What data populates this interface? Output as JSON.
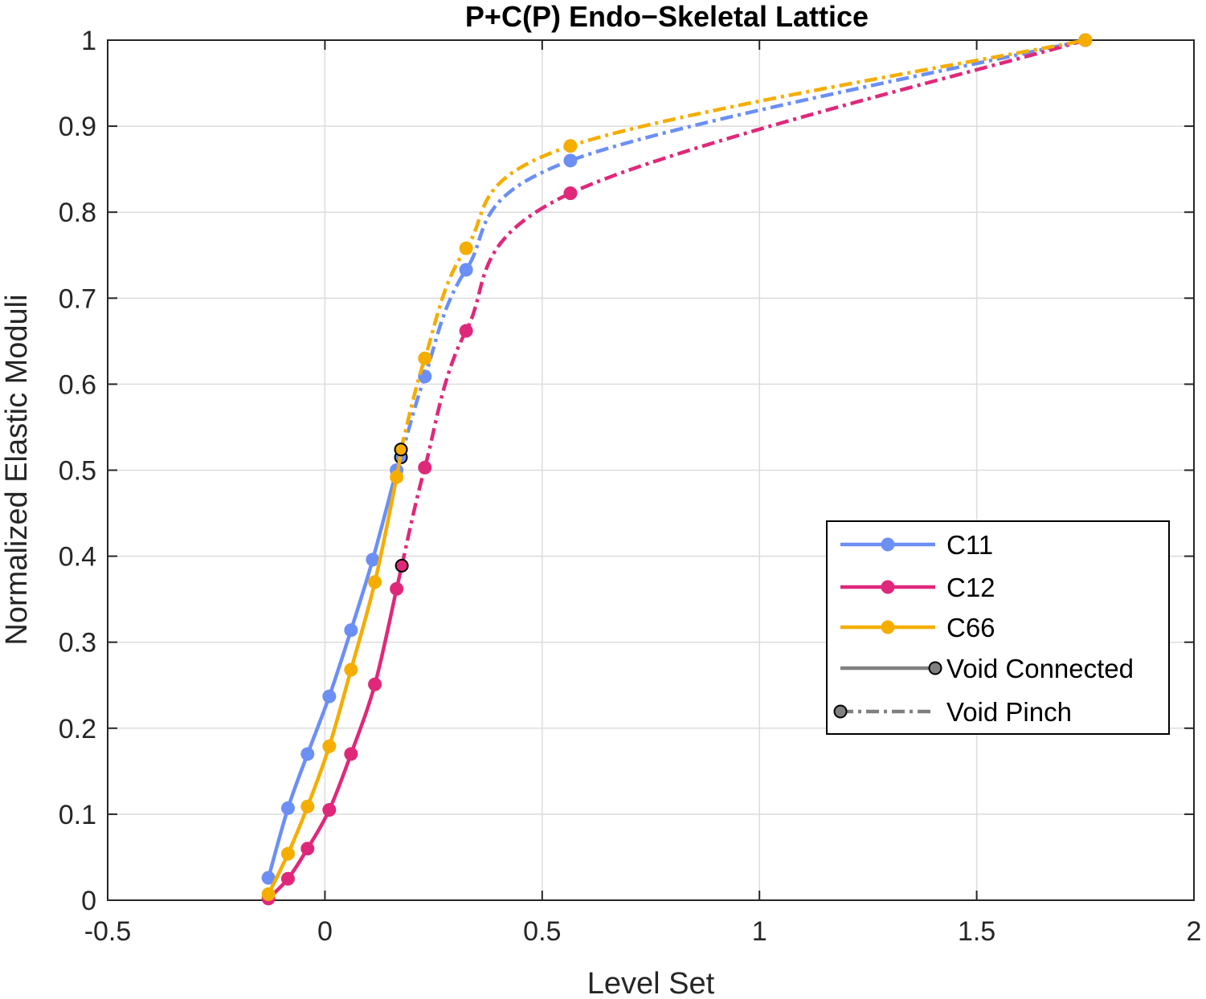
{
  "chart_data": {
    "type": "line",
    "title": "P+C(P) Endo−Skeletal Lattice",
    "xlabel": "Level Set",
    "ylabel": "Normalized Elastic Moduli",
    "xlim": [
      -0.5,
      2
    ],
    "ylim": [
      0,
      1
    ],
    "xticks": [
      -0.5,
      0,
      0.5,
      1,
      1.5,
      2
    ],
    "xtick_labels": [
      "-0.5",
      "0",
      "0.5",
      "1",
      "1.5",
      "2"
    ],
    "yticks": [
      0,
      0.1,
      0.2,
      0.3,
      0.4,
      0.5,
      0.6,
      0.7,
      0.8,
      0.9,
      1
    ],
    "ytick_labels": [
      "0",
      "0.1",
      "0.2",
      "0.3",
      "0.4",
      "0.5",
      "0.6",
      "0.7",
      "0.8",
      "0.9",
      "1"
    ],
    "grid": true,
    "legend_position": "lower-right",
    "series": [
      {
        "name": "C11",
        "color": "#6b8ff5",
        "connected": {
          "x": [
            -0.13,
            -0.085,
            -0.04,
            0.01,
            0.06,
            0.11,
            0.165
          ],
          "y": [
            0.026,
            0.107,
            0.17,
            0.237,
            0.314,
            0.396,
            0.5
          ]
        },
        "transition": {
          "x": 0.175,
          "y": 0.515
        },
        "pinch": {
          "x": [
            0.23,
            0.325,
            0.565,
            1.75
          ],
          "y": [
            0.609,
            0.733,
            0.86,
            1.0
          ]
        }
      },
      {
        "name": "C12",
        "color": "#e0287a",
        "connected": {
          "x": [
            -0.13,
            -0.085,
            -0.04,
            0.01,
            0.06,
            0.115,
            0.165
          ],
          "y": [
            0.002,
            0.025,
            0.06,
            0.105,
            0.17,
            0.251,
            0.362
          ]
        },
        "transition": {
          "x": 0.177,
          "y": 0.389
        },
        "pinch": {
          "x": [
            0.23,
            0.325,
            0.565,
            1.75
          ],
          "y": [
            0.503,
            0.662,
            0.822,
            1.0
          ]
        }
      },
      {
        "name": "C66",
        "color": "#f5ad00",
        "connected": {
          "x": [
            -0.13,
            -0.085,
            -0.04,
            0.01,
            0.06,
            0.115,
            0.165
          ],
          "y": [
            0.007,
            0.054,
            0.109,
            0.179,
            0.268,
            0.37,
            0.492
          ]
        },
        "transition": {
          "x": 0.175,
          "y": 0.524
        },
        "pinch": {
          "x": [
            0.23,
            0.325,
            0.565,
            1.75
          ],
          "y": [
            0.63,
            0.758,
            0.877,
            1.0
          ]
        }
      }
    ],
    "legend": [
      {
        "label": "C11",
        "color": "#6b8ff5",
        "style": "solid-dot"
      },
      {
        "label": "C12",
        "color": "#e0287a",
        "style": "solid-dot"
      },
      {
        "label": "C66",
        "color": "#f5ad00",
        "style": "solid-dot"
      },
      {
        "label": "Void Connected",
        "color": "#808080",
        "style": "solid-end-marker"
      },
      {
        "label": "Void Pinch",
        "color": "#808080",
        "style": "dashdot-start-marker"
      }
    ]
  }
}
